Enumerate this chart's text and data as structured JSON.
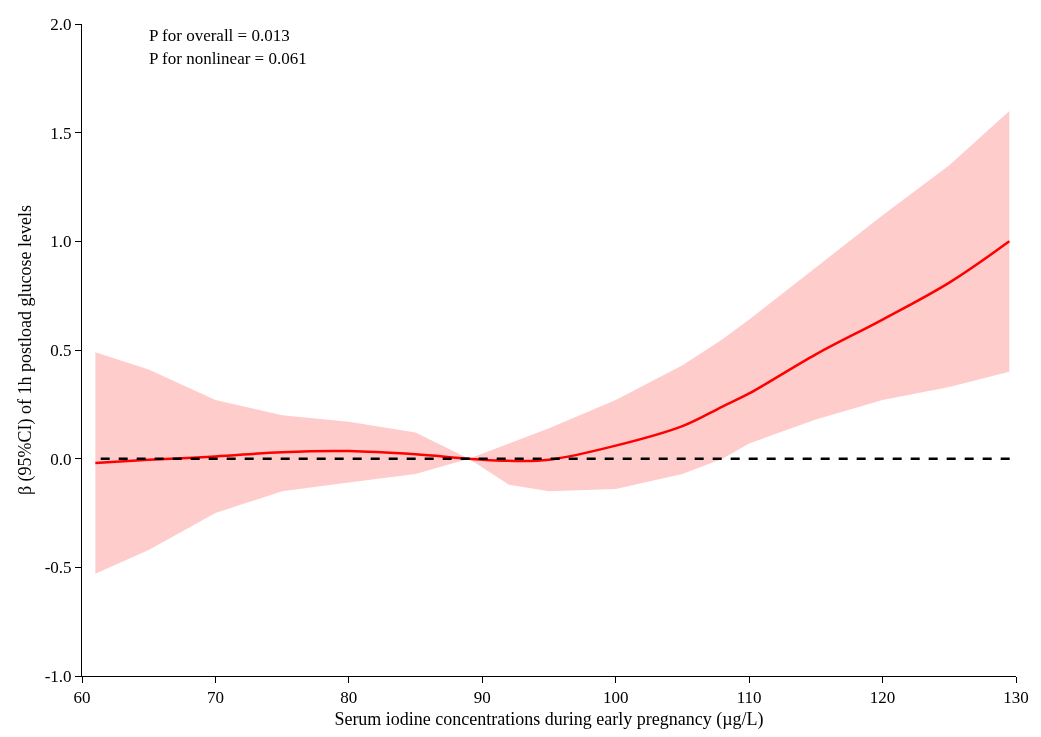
{
  "chart_data": {
    "type": "line",
    "xlabel": "Serum iodine concentrations during early pregnancy (µg/L)",
    "ylabel": "β (95%CI) of 1h postload glucose levels",
    "annotations": [
      "P for overall = 0.013",
      "P for nonlinear = 0.061"
    ],
    "xlim": [
      60,
      130
    ],
    "xticks": [
      60,
      70,
      80,
      90,
      100,
      110,
      120,
      130
    ],
    "ylim": [
      -1.0,
      2.0
    ],
    "yticks": [
      {
        "value": -1,
        "label": "-1.0"
      },
      {
        "value": -0.5,
        "label": "-0.5"
      },
      {
        "value": 0,
        "label": "0.0"
      },
      {
        "value": 0.5,
        "label": "0.5"
      },
      {
        "value": 1,
        "label": "1.0"
      },
      {
        "value": 1.5,
        "label": "1.5"
      },
      {
        "value": 2,
        "label": "2.0"
      }
    ],
    "marker": "none",
    "line_style": "solid",
    "ref_lines": [
      {
        "axis": "y",
        "value": 0,
        "label": null,
        "color": "#000000",
        "line_style": "dashed"
      }
    ],
    "series": [
      {
        "color": "#ff0000",
        "x": [
          61,
          65,
          70,
          75,
          80,
          85,
          89,
          92,
          95,
          100,
          105,
          108,
          110,
          115,
          120,
          125,
          129.5
        ],
        "values": [
          -0.02,
          -0.005,
          0.01,
          0.03,
          0.035,
          0.02,
          0,
          -0.01,
          -0.005,
          0.06,
          0.15,
          0.24,
          0.3,
          0.48,
          0.64,
          0.81,
          1.0
        ],
        "upper": [
          0.49,
          0.41,
          0.27,
          0.2,
          0.17,
          0.12,
          0,
          0.07,
          0.14,
          0.27,
          0.43,
          0.55,
          0.64,
          0.88,
          1.12,
          1.35,
          1.6
        ],
        "lower": [
          -0.53,
          -0.42,
          -0.25,
          -0.15,
          -0.11,
          -0.07,
          0,
          -0.12,
          -0.15,
          -0.14,
          -0.07,
          0,
          0.07,
          0.18,
          0.27,
          0.33,
          0.4
        ]
      }
    ]
  }
}
